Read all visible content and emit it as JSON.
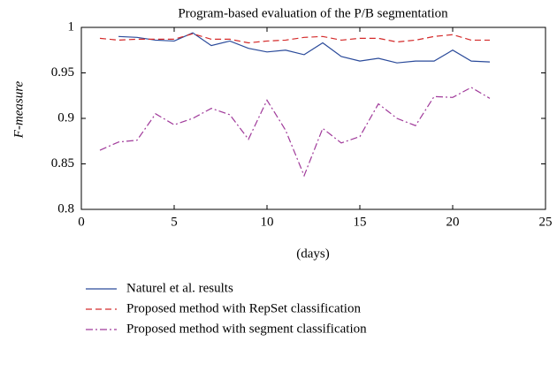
{
  "chart_data": {
    "type": "line",
    "title": "Program-based evaluation of the P/B segmentation",
    "xlabel": "(days)",
    "ylabel": "F-measure",
    "x": [
      1,
      2,
      3,
      4,
      5,
      6,
      7,
      8,
      9,
      10,
      11,
      12,
      13,
      14,
      15,
      16,
      17,
      18,
      19,
      20,
      21,
      22
    ],
    "series": [
      {
        "name": "Naturel et al. results",
        "color": "#2a4a9a",
        "dash": "none",
        "values": [
          null,
          0.99,
          0.989,
          0.986,
          0.985,
          0.994,
          0.98,
          0.985,
          0.977,
          0.973,
          0.975,
          0.97,
          0.983,
          0.968,
          0.963,
          0.966,
          0.961,
          0.963,
          0.963,
          0.975,
          0.963,
          0.962
        ]
      },
      {
        "name": "Proposed method with RepSet classification",
        "color": "#d42a2a",
        "dash": "7,4",
        "values": [
          0.988,
          0.986,
          0.987,
          0.987,
          0.987,
          0.993,
          0.987,
          0.987,
          0.983,
          0.985,
          0.986,
          0.989,
          0.99,
          0.986,
          0.988,
          0.988,
          0.984,
          0.986,
          0.99,
          0.992,
          0.986,
          0.986
        ]
      },
      {
        "name": "Proposed method with segment classification",
        "color": "#a03a9a",
        "dash": "8,3,2,3",
        "values": [
          0.865,
          0.874,
          0.876,
          0.905,
          0.893,
          0.9,
          0.911,
          0.904,
          0.877,
          0.92,
          0.887,
          0.837,
          0.889,
          0.873,
          0.88,
          0.916,
          0.9,
          0.892,
          0.924,
          0.923,
          0.934,
          0.922
        ]
      }
    ],
    "xlim": [
      0,
      25
    ],
    "xticks": [
      0,
      5,
      10,
      15,
      20,
      25
    ],
    "ylim": [
      0.8,
      1
    ],
    "yticks": [
      0.8,
      0.85,
      0.9,
      0.95,
      1
    ]
  }
}
